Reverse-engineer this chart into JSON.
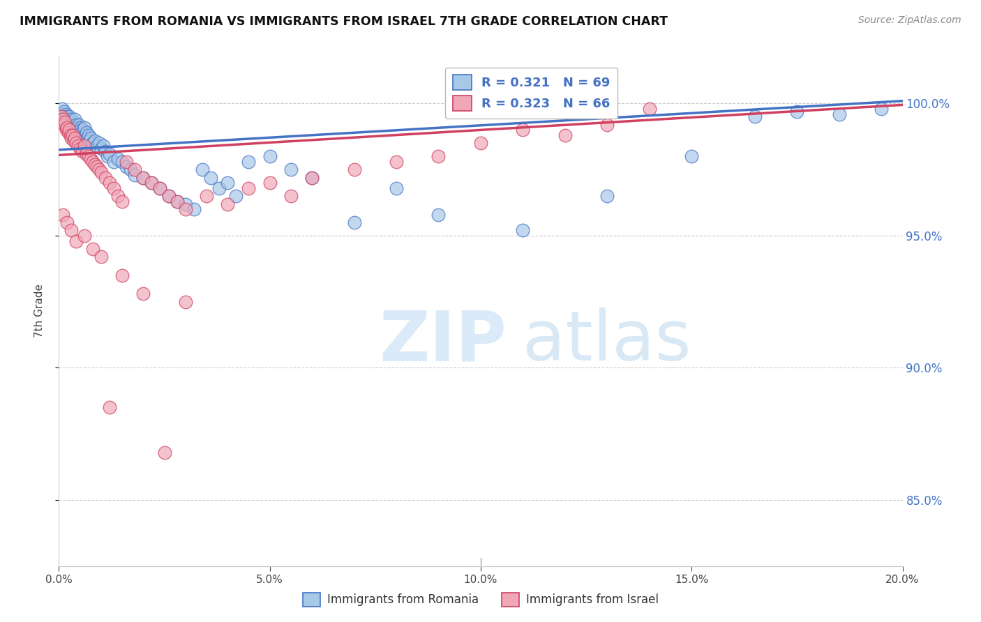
{
  "title": "IMMIGRANTS FROM ROMANIA VS IMMIGRANTS FROM ISRAEL 7TH GRADE CORRELATION CHART",
  "source": "Source: ZipAtlas.com",
  "ylabel": "7th Grade",
  "x_tick_labels": [
    "0.0%",
    "5.0%",
    "10.0%",
    "15.0%",
    "20.0%"
  ],
  "x_tick_positions": [
    0.0,
    5.0,
    10.0,
    15.0,
    20.0
  ],
  "y_tick_labels": [
    "85.0%",
    "90.0%",
    "95.0%",
    "100.0%"
  ],
  "y_tick_positions": [
    85.0,
    90.0,
    95.0,
    100.0
  ],
  "xlim": [
    0.0,
    20.0
  ],
  "ylim": [
    82.5,
    101.8
  ],
  "legend_romania": "Immigrants from Romania",
  "legend_israel": "Immigrants from Israel",
  "R_romania": 0.321,
  "N_romania": 69,
  "R_israel": 0.323,
  "N_israel": 66,
  "color_romania": "#a8c8e8",
  "color_israel": "#f0a8b8",
  "color_romania_line": "#4472c4",
  "color_israel_line": "#d04060",
  "watermark_zip": "ZIP",
  "watermark_atlas": "atlas",
  "trendline_romania_x0": 0.0,
  "trendline_romania_y0": 98.25,
  "trendline_romania_x1": 20.0,
  "trendline_romania_y1": 100.1,
  "trendline_israel_x0": 0.0,
  "trendline_israel_y0": 98.05,
  "trendline_israel_x1": 20.0,
  "trendline_israel_y1": 99.95,
  "romania_x": [
    0.08,
    0.1,
    0.12,
    0.15,
    0.18,
    0.2,
    0.22,
    0.25,
    0.28,
    0.3,
    0.32,
    0.35,
    0.38,
    0.4,
    0.42,
    0.45,
    0.48,
    0.5,
    0.52,
    0.55,
    0.58,
    0.6,
    0.62,
    0.65,
    0.68,
    0.7,
    0.72,
    0.75,
    0.8,
    0.85,
    0.9,
    0.95,
    1.0,
    1.05,
    1.1,
    1.15,
    1.2,
    1.3,
    1.4,
    1.5,
    1.6,
    1.7,
    1.8,
    2.0,
    2.2,
    2.4,
    2.6,
    2.8,
    3.0,
    3.2,
    3.4,
    3.6,
    3.8,
    4.0,
    4.2,
    4.5,
    5.0,
    5.5,
    6.0,
    7.0,
    8.0,
    9.0,
    11.0,
    13.0,
    15.0,
    16.5,
    17.5,
    18.5,
    19.5
  ],
  "romania_y": [
    99.8,
    99.6,
    99.7,
    99.5,
    99.6,
    99.5,
    99.4,
    99.5,
    99.3,
    99.4,
    99.2,
    99.3,
    99.4,
    99.2,
    99.1,
    99.0,
    99.2,
    99.1,
    99.0,
    98.9,
    99.0,
    99.1,
    98.8,
    98.9,
    98.7,
    98.8,
    98.6,
    98.7,
    98.5,
    98.6,
    98.4,
    98.5,
    98.3,
    98.4,
    98.2,
    98.0,
    98.1,
    97.8,
    97.9,
    97.8,
    97.6,
    97.5,
    97.3,
    97.2,
    97.0,
    96.8,
    96.5,
    96.3,
    96.2,
    96.0,
    97.5,
    97.2,
    96.8,
    97.0,
    96.5,
    97.8,
    98.0,
    97.5,
    97.2,
    95.5,
    96.8,
    95.8,
    95.2,
    96.5,
    98.0,
    99.5,
    99.7,
    99.6,
    99.8
  ],
  "israel_x": [
    0.06,
    0.08,
    0.1,
    0.12,
    0.15,
    0.18,
    0.2,
    0.22,
    0.25,
    0.28,
    0.3,
    0.32,
    0.35,
    0.38,
    0.4,
    0.45,
    0.5,
    0.55,
    0.6,
    0.65,
    0.7,
    0.75,
    0.8,
    0.85,
    0.9,
    0.95,
    1.0,
    1.1,
    1.2,
    1.3,
    1.4,
    1.5,
    1.6,
    1.8,
    2.0,
    2.2,
    2.4,
    2.6,
    2.8,
    3.0,
    3.5,
    4.0,
    4.5,
    5.0,
    5.5,
    6.0,
    7.0,
    8.0,
    9.0,
    10.0,
    11.0,
    12.0,
    13.0,
    14.0,
    0.1,
    0.2,
    0.3,
    0.4,
    0.6,
    0.8,
    1.0,
    1.5,
    2.0,
    3.0,
    1.2,
    2.5
  ],
  "israel_y": [
    99.5,
    99.3,
    99.4,
    99.2,
    99.3,
    99.0,
    99.1,
    98.9,
    99.0,
    98.8,
    98.7,
    98.8,
    98.6,
    98.7,
    98.5,
    98.4,
    98.3,
    98.2,
    98.4,
    98.1,
    98.0,
    97.9,
    97.8,
    97.7,
    97.6,
    97.5,
    97.4,
    97.2,
    97.0,
    96.8,
    96.5,
    96.3,
    97.8,
    97.5,
    97.2,
    97.0,
    96.8,
    96.5,
    96.3,
    96.0,
    96.5,
    96.2,
    96.8,
    97.0,
    96.5,
    97.2,
    97.5,
    97.8,
    98.0,
    98.5,
    99.0,
    98.8,
    99.2,
    99.8,
    95.8,
    95.5,
    95.2,
    94.8,
    95.0,
    94.5,
    94.2,
    93.5,
    92.8,
    92.5,
    88.5,
    86.8
  ]
}
